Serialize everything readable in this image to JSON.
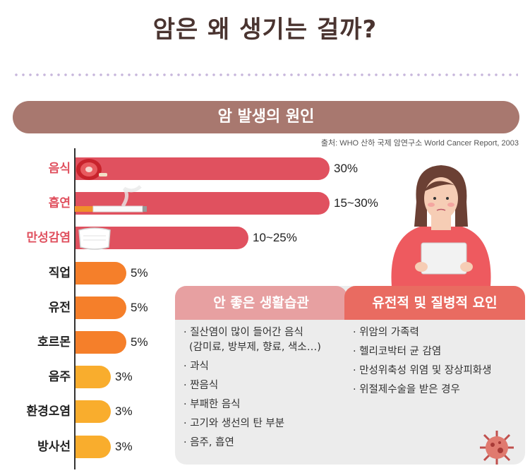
{
  "title": "암은 왜 생기는 걸까?",
  "banner": "암 발생의 원인",
  "source": "출처: WHO 산하 국제 암연구소 World Cancer Report, 2003",
  "colors": {
    "red": "#e0515f",
    "orange": "#f57f2a",
    "yellow": "#f9ad2d",
    "banner": "#a8786f",
    "panel_left": "#e7a0a1",
    "panel_right": "#e96b61"
  },
  "chart_data": {
    "type": "bar",
    "orientation": "horizontal",
    "unit": "%",
    "categories": [
      "음식",
      "흡연",
      "만성감염",
      "직업",
      "유전",
      "호르몬",
      "음주",
      "환경오염",
      "방사선"
    ],
    "values": [
      30,
      30,
      25,
      5,
      5,
      5,
      3,
      3,
      3
    ],
    "value_labels": [
      "30%",
      "15~30%",
      "10~25%",
      "5%",
      "5%",
      "5%",
      "3%",
      "3%",
      "3%"
    ],
    "label_colors": [
      "#e0515f",
      "#e0515f",
      "#e0515f",
      "#222222",
      "#222222",
      "#222222",
      "#222222",
      "#222222",
      "#222222"
    ],
    "bar_colors": [
      "#e0515f",
      "#e0515f",
      "#e0515f",
      "#f57f2a",
      "#f57f2a",
      "#f57f2a",
      "#f9ad2d",
      "#f9ad2d",
      "#f9ad2d"
    ],
    "icons": [
      "meat-icon",
      "cigarette-icon",
      "mask-icon"
    ]
  },
  "panels": {
    "left": {
      "title": "안 좋은 생활습관",
      "items": [
        "· 질산염이 많이 들어간 음식",
        "(감미료, 방부제, 향료, 색소…)",
        "· 과식",
        "· 짠음식",
        "· 부패한 음식",
        "· 고기와 생선의 탄 부분",
        "· 음주, 흡연"
      ]
    },
    "right": {
      "title": "유전적 및 질병적 요인",
      "items": [
        "· 위암의 가족력",
        "· 헬리코박터 균 감염",
        "· 만성위축성 위염 및 장상피화생",
        "· 위절제수술을 받은 경우"
      ]
    }
  }
}
